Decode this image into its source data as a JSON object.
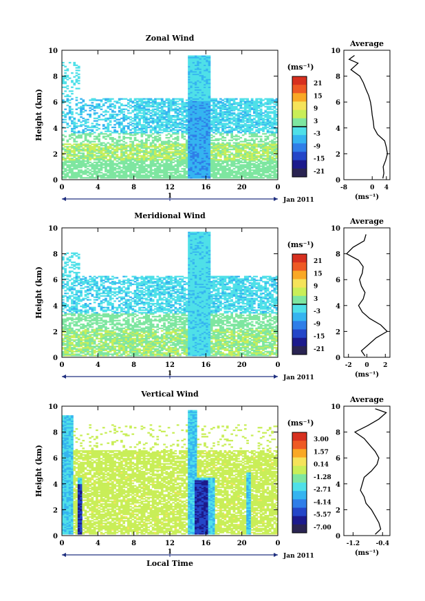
{
  "figure": {
    "xlabel": "Local Time",
    "date_label": "Jan 2011",
    "day_tick": "1"
  },
  "chart_data": [
    {
      "type": "heatmap",
      "title": "Zonal Wind",
      "xlabel": "",
      "ylabel": "Height (km)",
      "x_ticks": [
        "0",
        "4",
        "8",
        "12",
        "16",
        "20",
        "0"
      ],
      "y_ticks": [
        "0",
        "2",
        "4",
        "6",
        "8",
        "10"
      ],
      "xlim": [
        0,
        24
      ],
      "ylim": [
        0,
        10
      ],
      "colorbar": {
        "unit": "(ms⁻¹)",
        "labels": [
          "21",
          "15",
          "9",
          "3",
          "-3",
          "-9",
          "-15",
          "-21"
        ],
        "colors": [
          "#d7301f",
          "#ee5a24",
          "#f9a825",
          "#f5e35a",
          "#c9ee58",
          "#7ee6a0",
          "#4fe0e8",
          "#35b4f0",
          "#2f7ee8",
          "#2446c8",
          "#1c1a8c",
          "#2a2452"
        ],
        "range": [
          -21,
          21
        ],
        "zero_line": true
      },
      "profile": {
        "title": "Average",
        "xlabel": "(ms⁻¹)",
        "x_ticks": [
          "-8",
          "0",
          "4"
        ],
        "x_tick_values": [
          -8,
          0,
          4
        ],
        "xlim": [
          -8,
          5
        ],
        "height_km": [
          0.1,
          0.5,
          1,
          1.5,
          2,
          2.5,
          3,
          3.5,
          4,
          4.5,
          5,
          5.5,
          6,
          6.5,
          7,
          7.5,
          8,
          8.5,
          9,
          9.3,
          9.6
        ],
        "value": [
          3.0,
          3.3,
          3.1,
          3.8,
          4.3,
          4.0,
          3.5,
          1.5,
          0.5,
          0.3,
          0.0,
          -0.2,
          -0.5,
          -1.0,
          -1.8,
          -2.5,
          -3.5,
          -6.0,
          -4.0,
          -6.5,
          -5.0
        ]
      },
      "regions": [
        {
          "kind": "easterly",
          "hours": [
            0,
            24
          ],
          "km": [
            0,
            3
          ],
          "level": "-3"
        },
        {
          "kind": "easterly",
          "hours": [
            0,
            10
          ],
          "km": [
            3,
            6
          ],
          "level": "-6"
        },
        {
          "kind": "easterly",
          "hours": [
            14,
            17
          ],
          "km": [
            2,
            9.5
          ],
          "level": "-9"
        },
        {
          "kind": "westerly",
          "hours": [
            8,
            24
          ],
          "km": [
            4,
            6
          ],
          "level": "-3"
        }
      ]
    },
    {
      "type": "heatmap",
      "title": "Meridional Wind",
      "xlabel": "",
      "ylabel": "Height (km)",
      "x_ticks": [
        "0",
        "4",
        "8",
        "12",
        "16",
        "20",
        "0"
      ],
      "y_ticks": [
        "0",
        "2",
        "4",
        "6",
        "8",
        "10"
      ],
      "xlim": [
        0,
        24
      ],
      "ylim": [
        0,
        10
      ],
      "colorbar": {
        "unit": "(ms⁻¹)",
        "labels": [
          "21",
          "15",
          "9",
          "3",
          "-3",
          "-9",
          "-15",
          "-21"
        ],
        "colors": [
          "#d7301f",
          "#ee5a24",
          "#f9a825",
          "#f5e35a",
          "#c9ee58",
          "#7ee6a0",
          "#4fe0e8",
          "#35b4f0",
          "#2f7ee8",
          "#2446c8",
          "#1c1a8c",
          "#2a2452"
        ],
        "range": [
          -21,
          21
        ],
        "zero_line": true
      },
      "profile": {
        "title": "Average",
        "xlabel": "(ms⁻¹)",
        "x_ticks": [
          "-2",
          "0",
          "2"
        ],
        "x_tick_values": [
          -2,
          0,
          2
        ],
        "xlim": [
          -2.5,
          2.5
        ],
        "height_km": [
          0.1,
          0.5,
          1,
          1.5,
          2,
          2.5,
          3,
          3.5,
          4,
          4.5,
          5,
          5.5,
          6,
          6.5,
          7,
          7.5,
          8,
          8.5,
          9,
          9.5
        ],
        "value": [
          -0.2,
          -0.6,
          0.2,
          1.0,
          2.2,
          1.5,
          0.3,
          -0.5,
          -0.9,
          -0.4,
          -0.2,
          -0.6,
          -0.8,
          -0.5,
          -0.4,
          -0.9,
          -2.2,
          -1.5,
          -0.3,
          -0.1
        ]
      }
    },
    {
      "type": "heatmap",
      "title": "Vertical Wind",
      "xlabel": "Local Time",
      "ylabel": "Height (km)",
      "x_ticks": [
        "0",
        "4",
        "8",
        "12",
        "16",
        "20",
        "0"
      ],
      "y_ticks": [
        "0",
        "2",
        "4",
        "6",
        "8",
        "10"
      ],
      "xlim": [
        0,
        24
      ],
      "ylim": [
        0,
        10
      ],
      "colorbar": {
        "unit": "(ms⁻¹)",
        "labels": [
          "3.00",
          "1.57",
          "0.14",
          "-1.28",
          "-2.71",
          "-4.14",
          "-5.57",
          "-7.00"
        ],
        "colors": [
          "#d7301f",
          "#ee5a24",
          "#f9a825",
          "#f5e35a",
          "#c9ee58",
          "#7ee6a0",
          "#4fe0e8",
          "#35b4f0",
          "#2f7ee8",
          "#2446c8",
          "#1c1a8c",
          "#2a2452"
        ],
        "range": [
          -7.0,
          3.0
        ],
        "zero_line": false
      },
      "profile": {
        "title": "Average",
        "xlabel": "(ms⁻¹)",
        "x_ticks": [
          "-1.2",
          "-0.4"
        ],
        "x_tick_values": [
          -1.2,
          -0.4
        ],
        "xlim": [
          -1.45,
          -0.2
        ],
        "height_km": [
          0.1,
          0.5,
          1,
          1.5,
          2,
          2.5,
          3,
          3.5,
          4,
          4.5,
          5,
          5.5,
          6,
          6.5,
          7,
          7.5,
          8,
          8.5,
          9,
          9.5,
          9.8
        ],
        "value": [
          -0.6,
          -0.45,
          -0.5,
          -0.6,
          -0.7,
          -0.85,
          -0.9,
          -1.0,
          -0.95,
          -0.9,
          -0.7,
          -0.55,
          -0.5,
          -0.6,
          -0.75,
          -0.9,
          -1.15,
          -0.8,
          -0.5,
          -0.3,
          -0.6
        ]
      }
    }
  ]
}
